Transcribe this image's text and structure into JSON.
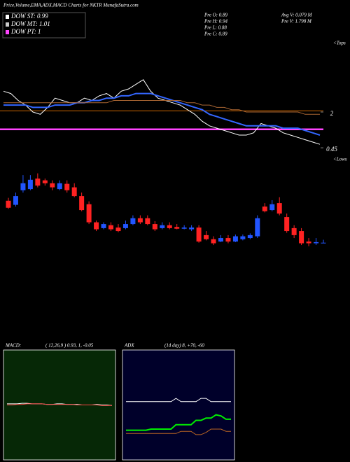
{
  "header": {
    "title": "Price,Volume,EMA,ADX,MACD Charts for NKTR MunafaSutra.com",
    "dow": [
      {
        "label": "DOW ST: 0.99",
        "color": "#ffffff"
      },
      {
        "label": "DOW MT: 1.01",
        "color": "#cccccc"
      },
      {
        "label": "DOW PT: 1",
        "color": "#ff44ff"
      }
    ],
    "info": [
      "Pre O: 0.89",
      "Pre H: 0.94",
      "Pre L: 0.88",
      "Pre C: 0.89"
    ],
    "info2": [
      "Avg V: 0.079 M",
      "Pre V: 1.798 M"
    ],
    "tops": "<Tops",
    "lows": "<Lows"
  },
  "chart_data": [
    {
      "type": "line",
      "ylim": [
        0,
        5
      ],
      "yticks": [
        0.45,
        2
      ],
      "hlines": [
        {
          "value": 2.05,
          "color": "#cc6600"
        },
        {
          "value": 1.25,
          "color": "#ff44ff"
        }
      ],
      "series": [
        {
          "color": "#ffffff",
          "values": [
            2.9,
            2.8,
            2.5,
            2.3,
            2.0,
            1.9,
            2.2,
            2.6,
            2.5,
            2.4,
            2.4,
            2.6,
            2.5,
            2.7,
            2.8,
            2.6,
            2.9,
            3.0,
            3.2,
            3.4,
            2.9,
            2.6,
            2.5,
            2.4,
            2.3,
            2.1,
            1.9,
            1.6,
            1.4,
            1.3,
            1.2,
            1.1,
            1.0,
            1.0,
            1.1,
            1.5,
            1.4,
            1.3,
            1.1,
            1.0,
            0.9,
            0.8,
            0.7,
            0.6
          ]
        },
        {
          "color": "#3366ff",
          "values": [
            2.3,
            2.3,
            2.3,
            2.3,
            2.2,
            2.2,
            2.2,
            2.3,
            2.3,
            2.3,
            2.4,
            2.4,
            2.5,
            2.5,
            2.6,
            2.6,
            2.7,
            2.7,
            2.8,
            2.8,
            2.8,
            2.7,
            2.6,
            2.5,
            2.4,
            2.3,
            2.2,
            2.1,
            1.9,
            1.8,
            1.7,
            1.6,
            1.5,
            1.4,
            1.4,
            1.4,
            1.4,
            1.4,
            1.3,
            1.3,
            1.3,
            1.2,
            1.1,
            1.0
          ]
        },
        {
          "color": "#aa6633",
          "values": [
            2.4,
            2.4,
            2.4,
            2.4,
            2.4,
            2.4,
            2.4,
            2.4,
            2.4,
            2.4,
            2.4,
            2.4,
            2.4,
            2.4,
            2.4,
            2.5,
            2.5,
            2.5,
            2.5,
            2.5,
            2.5,
            2.5,
            2.5,
            2.5,
            2.5,
            2.4,
            2.4,
            2.3,
            2.3,
            2.2,
            2.2,
            2.1,
            2.1,
            2.0,
            2.0,
            2.0,
            2.0,
            2.0,
            2.0,
            2.0,
            2.0,
            1.9,
            1.9,
            1.9
          ]
        }
      ]
    },
    {
      "type": "candlestick",
      "ylim": [
        0.25,
        2.4
      ],
      "up_color": "#2255ff",
      "down_color": "#ff2222",
      "open": [
        1.61,
        1.54,
        1.79,
        1.81,
        1.99,
        1.96,
        1.91,
        1.81,
        1.9,
        1.84,
        1.69,
        1.55,
        1.24,
        1.14,
        1.19,
        1.15,
        1.14,
        1.21,
        1.31,
        1.31,
        1.21,
        1.14,
        1.19,
        1.16,
        1.13,
        1.12,
        1.15,
        1.02,
        0.95,
        0.91,
        0.97,
        0.91,
        0.95,
        0.97,
        1.0,
        1.51,
        1.45,
        1.57,
        1.33,
        1.14,
        1.09,
        0.91,
        0.88,
        0.88
      ],
      "high": [
        1.66,
        1.75,
        2.05,
        2.05,
        2.08,
        1.99,
        1.96,
        1.96,
        1.96,
        1.91,
        1.75,
        1.6,
        1.27,
        1.24,
        1.24,
        1.21,
        1.27,
        1.36,
        1.36,
        1.36,
        1.26,
        1.24,
        1.24,
        1.21,
        1.19,
        1.19,
        1.19,
        1.09,
        1.0,
        1.02,
        1.02,
        1.03,
        1.03,
        1.05,
        1.36,
        1.57,
        1.62,
        1.67,
        1.39,
        1.19,
        1.14,
        0.97,
        0.97,
        0.94
      ],
      "low": [
        1.47,
        1.51,
        1.75,
        1.79,
        1.84,
        1.87,
        1.79,
        1.79,
        1.75,
        1.67,
        1.43,
        1.21,
        1.09,
        1.12,
        1.09,
        1.07,
        1.12,
        1.19,
        1.21,
        1.19,
        1.09,
        1.12,
        1.12,
        1.12,
        1.12,
        1.09,
        0.89,
        0.93,
        0.85,
        0.9,
        0.88,
        0.9,
        0.93,
        0.95,
        0.97,
        1.41,
        1.43,
        1.36,
        1.06,
        0.97,
        0.85,
        0.83,
        0.85,
        0.88
      ],
      "close": [
        1.49,
        1.69,
        1.91,
        1.97,
        1.87,
        1.91,
        1.84,
        1.91,
        1.79,
        1.69,
        1.45,
        1.24,
        1.12,
        1.21,
        1.12,
        1.09,
        1.21,
        1.31,
        1.24,
        1.21,
        1.12,
        1.19,
        1.14,
        1.13,
        1.15,
        1.15,
        0.91,
        0.95,
        0.88,
        0.97,
        0.91,
        1.0,
        1.0,
        1.02,
        1.31,
        1.43,
        1.55,
        1.39,
        1.09,
        1.02,
        0.88,
        0.88,
        0.9,
        0.89
      ]
    },
    {
      "type": "line",
      "title": "MACD:",
      "subtitle": "( 12,26,9 ) 0.93, 1, -0.05",
      "ylim": [
        -1,
        1
      ],
      "background": "#062806",
      "series": [
        {
          "color": "#ffffff",
          "values": [
            0.02,
            0.02,
            0.02,
            0.03,
            0.03,
            0.02,
            0.02,
            0.02,
            0.01,
            0.01,
            0.02,
            0.02,
            0.01,
            0.01,
            0.01,
            0.0,
            0.0,
            0.0,
            0.01,
            0.0,
            0.0,
            -0.01
          ]
        },
        {
          "color": "#ff4444",
          "values": [
            0.0,
            0.0,
            0.01,
            0.01,
            0.02,
            0.02,
            0.02,
            0.02,
            0.01,
            0.01,
            0.01,
            0.01,
            0.01,
            0.01,
            0.0,
            0.0,
            0.0,
            0.0,
            0.0,
            -0.01,
            -0.01,
            -0.01
          ]
        }
      ]
    },
    {
      "type": "line",
      "title": "ADX",
      "subtitle": "(14  day) 8, +70, -60",
      "ylim": [
        0,
        100
      ],
      "background": "#00002a",
      "series": [
        {
          "color": "#ffffff",
          "values": [
            53,
            53,
            53,
            53,
            53,
            53,
            53,
            53,
            53,
            53,
            56,
            53,
            53,
            53,
            53,
            56,
            56,
            53,
            53,
            53,
            53,
            53
          ]
        },
        {
          "color": "#00ee00",
          "values": [
            27,
            27,
            27,
            27,
            27,
            28,
            28,
            28,
            28,
            28,
            32,
            32,
            32,
            32,
            36,
            36,
            38,
            38,
            41,
            40,
            37,
            37
          ]
        },
        {
          "color": "#bb6622",
          "values": [
            24,
            24,
            24,
            24,
            24,
            24,
            24,
            24,
            24,
            24,
            24,
            26,
            26,
            26,
            23,
            23,
            25,
            28,
            28,
            28,
            26,
            26
          ]
        }
      ]
    }
  ]
}
